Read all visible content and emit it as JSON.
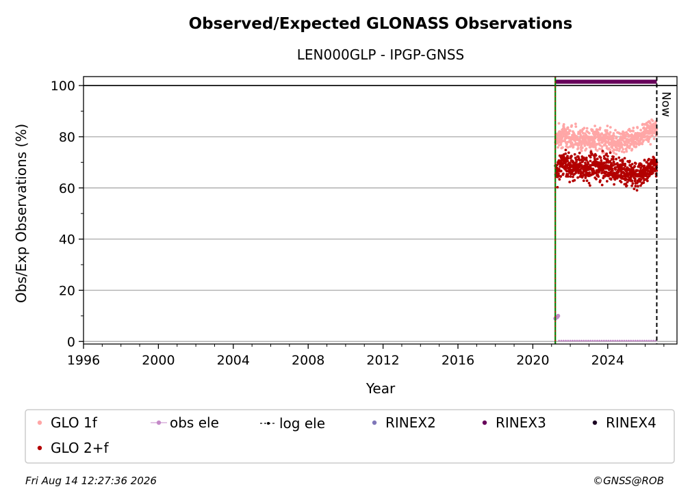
{
  "chart_data": {
    "type": "scatter",
    "title": "Observed/Expected GLONASS Observations",
    "subtitle": "LEN000GLP - IPGP-GNSS",
    "xlabel": "Year",
    "ylabel": "Obs/Exp Observations (%)",
    "xlim": [
      1996,
      2027.7
    ],
    "ylim": [
      -1,
      103.5
    ],
    "x_ticks": [
      1996,
      2000,
      2004,
      2008,
      2012,
      2016,
      2020,
      2024
    ],
    "y_ticks": [
      0,
      20,
      40,
      60,
      80,
      100
    ],
    "grid": "y",
    "reference_line": 100,
    "now_label": "Now",
    "now_x": 2026.62,
    "start_x": 2021.2,
    "series": [
      {
        "name": "GLO 1f",
        "color": "#ffa6a6",
        "x_range": [
          2021.2,
          2026.62
        ],
        "points": [
          [
            2021.25,
            79.2
          ],
          [
            2021.5,
            80.5
          ],
          [
            2021.75,
            81.0
          ],
          [
            2022.0,
            79.6
          ],
          [
            2022.25,
            80.2
          ],
          [
            2022.5,
            78.8
          ],
          [
            2022.75,
            79.4
          ],
          [
            2023.0,
            78.6
          ],
          [
            2023.25,
            79.1
          ],
          [
            2023.5,
            79.8
          ],
          [
            2023.75,
            78.2
          ],
          [
            2024.0,
            79.5
          ],
          [
            2024.25,
            78.4
          ],
          [
            2024.5,
            77.6
          ],
          [
            2024.75,
            78.8
          ],
          [
            2025.0,
            78.1
          ],
          [
            2025.25,
            79.0
          ],
          [
            2025.5,
            79.6
          ],
          [
            2025.75,
            80.6
          ],
          [
            2026.0,
            81.5
          ],
          [
            2026.25,
            82.4
          ],
          [
            2026.5,
            83.2
          ],
          [
            2026.6,
            83.0
          ]
        ]
      },
      {
        "name": "GLO 2+f",
        "color": "#b30000",
        "x_range": [
          2021.2,
          2026.62
        ],
        "points": [
          [
            2021.25,
            66.0
          ],
          [
            2021.5,
            69.2
          ],
          [
            2021.75,
            70.0
          ],
          [
            2022.0,
            68.1
          ],
          [
            2022.25,
            68.6
          ],
          [
            2022.5,
            67.0
          ],
          [
            2022.75,
            68.2
          ],
          [
            2023.0,
            67.4
          ],
          [
            2023.25,
            69.0
          ],
          [
            2023.5,
            68.3
          ],
          [
            2023.75,
            67.2
          ],
          [
            2024.0,
            68.6
          ],
          [
            2024.25,
            66.8
          ],
          [
            2024.5,
            66.0
          ],
          [
            2024.75,
            67.2
          ],
          [
            2025.0,
            66.5
          ],
          [
            2025.25,
            65.6
          ],
          [
            2025.5,
            64.8
          ],
          [
            2025.75,
            65.7
          ],
          [
            2026.0,
            66.5
          ],
          [
            2026.25,
            68.4
          ],
          [
            2026.5,
            69.2
          ],
          [
            2026.6,
            68.0
          ]
        ]
      },
      {
        "name": "obs ele",
        "color": "#c48ac8",
        "points": [
          [
            2021.2,
            9.0
          ],
          [
            2021.3,
            9.5
          ],
          [
            2021.35,
            10.0
          ]
        ],
        "baseline_range": [
          2021.4,
          2026.62
        ],
        "baseline_y": 0.3
      },
      {
        "name": "log ele",
        "color": "#000000",
        "points": []
      },
      {
        "name": "RINEX2",
        "color": "#7f77b9",
        "points": []
      },
      {
        "name": "RINEX3",
        "color": "#67005a",
        "x_range": [
          2021.2,
          2026.62
        ],
        "y": 101.5
      },
      {
        "name": "RINEX4",
        "color": "#1a0022",
        "points": []
      }
    ],
    "legend_location": "below"
  },
  "footer": {
    "timestamp": "Fri Aug 14 12:27:36 2026",
    "credit": "©GNSS@ROB"
  }
}
